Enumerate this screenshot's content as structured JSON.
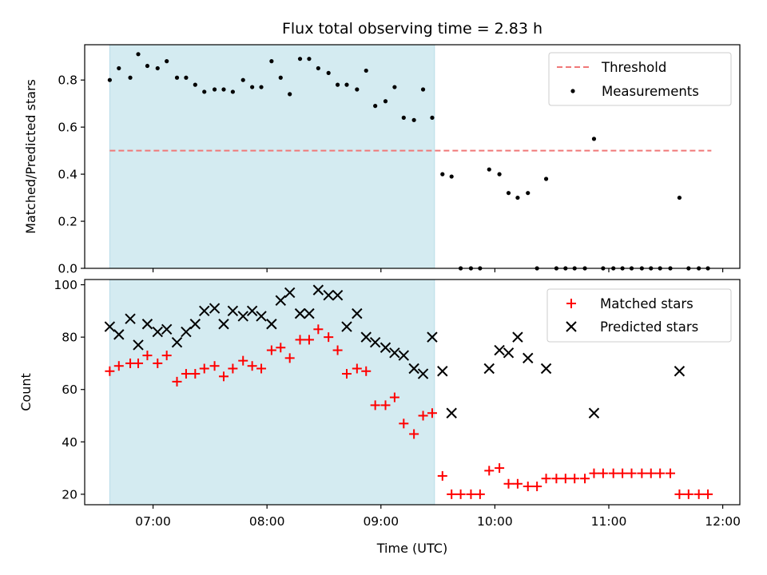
{
  "chart_data": [
    {
      "type": "scatter",
      "title": "Flux total observing time = 2.83 h",
      "xlabel": "",
      "ylabel": "Matched/Predicted stars",
      "xlim_hours": [
        6.4,
        12.15
      ],
      "ylim": [
        0,
        0.95
      ],
      "yticks": [
        0.0,
        0.2,
        0.4,
        0.6,
        0.8
      ],
      "ytick_labels": [
        "0.0",
        "0.2",
        "0.4",
        "0.6",
        "0.8"
      ],
      "shaded_span_hours": [
        6.62,
        9.47
      ],
      "shaded_color": "#d4ebf1",
      "threshold": {
        "name": "Threshold",
        "value": 0.5,
        "x_hours": [
          6.62,
          11.9
        ],
        "color": "#f07878"
      },
      "legend": {
        "position": "top-right",
        "entries": [
          "Threshold",
          "Measurements"
        ]
      },
      "series": [
        {
          "name": "Measurements",
          "color": "#000000",
          "x_hours": [
            6.62,
            6.7,
            6.8,
            6.87,
            6.95,
            7.04,
            7.12,
            7.21,
            7.29,
            7.37,
            7.45,
            7.54,
            7.62,
            7.7,
            7.79,
            7.87,
            7.95,
            8.04,
            8.12,
            8.2,
            8.29,
            8.37,
            8.45,
            8.54,
            8.62,
            8.7,
            8.79,
            8.87,
            8.95,
            9.04,
            9.12,
            9.2,
            9.29,
            9.37,
            9.45,
            9.54,
            9.62,
            9.7,
            9.79,
            9.87,
            9.95,
            10.04,
            10.12,
            10.2,
            10.29,
            10.37,
            10.45,
            10.54,
            10.62,
            10.7,
            10.79,
            10.87,
            10.95,
            11.04,
            11.12,
            11.2,
            11.29,
            11.37,
            11.45,
            11.54,
            11.62,
            11.7,
            11.79,
            11.87
          ],
          "values": [
            0.8,
            0.85,
            0.81,
            0.91,
            0.86,
            0.85,
            0.88,
            0.81,
            0.81,
            0.78,
            0.75,
            0.76,
            0.76,
            0.75,
            0.8,
            0.77,
            0.77,
            0.88,
            0.81,
            0.74,
            0.89,
            0.89,
            0.85,
            0.83,
            0.78,
            0.78,
            0.76,
            0.84,
            0.69,
            0.71,
            0.77,
            0.64,
            0.63,
            0.76,
            0.64,
            0.4,
            0.39,
            0.0,
            0.0,
            0.0,
            0.42,
            0.4,
            0.32,
            0.3,
            0.32,
            0.0,
            0.38,
            0.0,
            0.0,
            0.0,
            0.0,
            0.55,
            0.0,
            0.0,
            0.0,
            0.0,
            0.0,
            0.0,
            0.0,
            0.0,
            0.3,
            0.0,
            0.0,
            0.0
          ]
        }
      ]
    },
    {
      "type": "scatter",
      "title": "",
      "xlabel": "Time (UTC)",
      "ylabel": "Count",
      "xlim_hours": [
        6.4,
        12.15
      ],
      "ylim": [
        16,
        102
      ],
      "yticks": [
        20,
        40,
        60,
        80,
        100
      ],
      "ytick_labels": [
        "20",
        "40",
        "60",
        "80",
        "100"
      ],
      "xticks_hours": [
        7,
        8,
        9,
        10,
        11,
        12
      ],
      "xtick_labels": [
        "07:00",
        "08:00",
        "09:00",
        "10:00",
        "11:00",
        "12:00"
      ],
      "shaded_span_hours": [
        6.62,
        9.47
      ],
      "shaded_color": "#d4ebf1",
      "legend": {
        "position": "top-right",
        "entries": [
          "Matched stars",
          "Predicted stars"
        ]
      },
      "series": [
        {
          "name": "Matched stars",
          "marker": "plus",
          "color": "#ff0000",
          "x_hours": [
            6.62,
            6.7,
            6.8,
            6.87,
            6.95,
            7.04,
            7.12,
            7.21,
            7.29,
            7.37,
            7.45,
            7.54,
            7.62,
            7.7,
            7.79,
            7.87,
            7.95,
            8.04,
            8.12,
            8.2,
            8.29,
            8.37,
            8.45,
            8.54,
            8.62,
            8.7,
            8.79,
            8.87,
            8.95,
            9.04,
            9.12,
            9.2,
            9.29,
            9.37,
            9.45,
            9.54,
            9.62,
            9.7,
            9.79,
            9.87,
            9.95,
            10.04,
            10.12,
            10.2,
            10.29,
            10.37,
            10.45,
            10.54,
            10.62,
            10.7,
            10.79,
            10.87,
            10.95,
            11.04,
            11.12,
            11.2,
            11.29,
            11.37,
            11.45,
            11.54,
            11.62,
            11.7,
            11.79,
            11.87
          ],
          "values": [
            67,
            69,
            70,
            70,
            73,
            70,
            73,
            63,
            66,
            66,
            68,
            69,
            65,
            68,
            71,
            69,
            68,
            75,
            76,
            72,
            79,
            79,
            83,
            80,
            75,
            66,
            68,
            67,
            54,
            54,
            57,
            47,
            43,
            50,
            51,
            27,
            20,
            20,
            20,
            20,
            29,
            30,
            24,
            24,
            23,
            23,
            26,
            26,
            26,
            26,
            26,
            28,
            28,
            28,
            28,
            28,
            28,
            28,
            28,
            28,
            20,
            20,
            20,
            20
          ]
        },
        {
          "name": "Predicted stars",
          "marker": "x",
          "color": "#000000",
          "x_hours": [
            6.62,
            6.7,
            6.8,
            6.87,
            6.95,
            7.04,
            7.12,
            7.21,
            7.29,
            7.37,
            7.45,
            7.54,
            7.62,
            7.7,
            7.79,
            7.87,
            7.95,
            8.04,
            8.12,
            8.2,
            8.29,
            8.37,
            8.45,
            8.54,
            8.62,
            8.7,
            8.79,
            8.87,
            8.95,
            9.04,
            9.12,
            9.2,
            9.29,
            9.37,
            9.45,
            9.54,
            9.62,
            9.95,
            10.04,
            10.12,
            10.2,
            10.29,
            10.45,
            10.87,
            11.62
          ],
          "values": [
            84,
            81,
            87,
            77,
            85,
            82,
            83,
            78,
            82,
            85,
            90,
            91,
            85,
            90,
            88,
            90,
            88,
            85,
            94,
            97,
            89,
            89,
            98,
            96,
            96,
            84,
            89,
            80,
            78,
            76,
            74,
            73,
            68,
            66,
            80,
            67,
            51,
            68,
            75,
            74,
            80,
            72,
            68,
            51,
            67
          ]
        }
      ]
    }
  ]
}
